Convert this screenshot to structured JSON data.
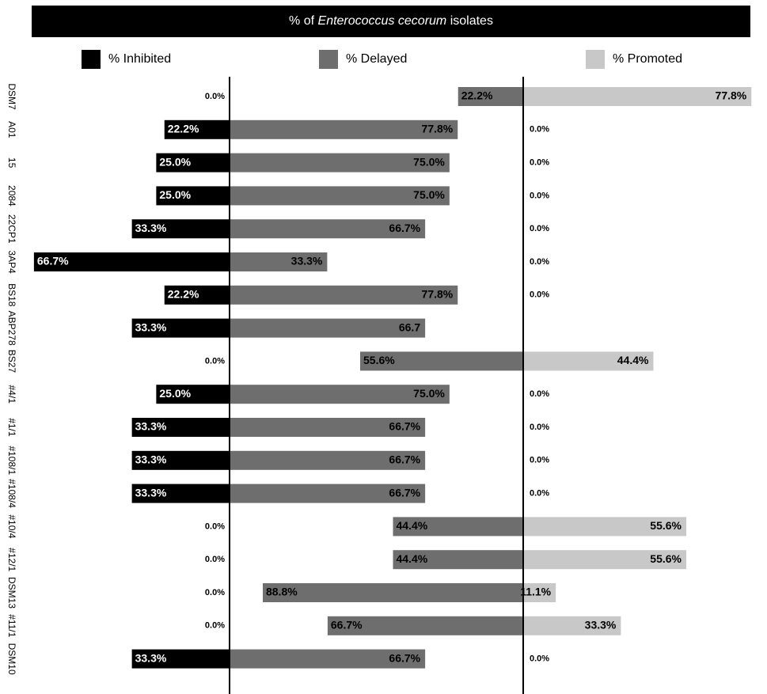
{
  "title": {
    "prefix": "% of ",
    "species": "Enterococcus cecorum",
    "suffix": " isolates"
  },
  "legend": [
    {
      "label": "% Inhibited",
      "color": "#000000"
    },
    {
      "label": "% Delayed",
      "color": "#6e6e6e"
    },
    {
      "label": "% Promoted",
      "color": "#c8c8c8"
    }
  ],
  "chart_data": {
    "type": "bar",
    "stacked": true,
    "orientation": "horizontal",
    "title": "% of Enterococcus cecorum isolates",
    "categories": [
      "DSM7",
      "A01",
      "15",
      "2084",
      "22CP1",
      "3AP4",
      "BS18",
      "ABP278",
      "BS27",
      "#4/1",
      "#1/1",
      "#108/1",
      "#108/4",
      "#10/4",
      "#12/1",
      "DSM13",
      "#11/1",
      "DSM10"
    ],
    "series": [
      {
        "name": "% Inhibited",
        "color": "#000000",
        "values": [
          0,
          22.2,
          25,
          25,
          33.3,
          66.7,
          22.2,
          33.3,
          0,
          25,
          33.3,
          33.3,
          33.3,
          0,
          0,
          0,
          0,
          33.3
        ],
        "labels": [
          "0.0%",
          "22.2%",
          "25.0%",
          "25.0%",
          "33.3%",
          "66.7%",
          "22.2%",
          "33.3%",
          "0.0%",
          "25.0%",
          "33.3%",
          "33.3%",
          "33.3%",
          "0.0%",
          "0.0%",
          "0.0%",
          "0.0%",
          "33.3%"
        ]
      },
      {
        "name": "% Delayed",
        "color": "#6e6e6e",
        "values": [
          22.2,
          77.8,
          75,
          75,
          66.7,
          33.3,
          77.8,
          66.7,
          55.6,
          75,
          66.7,
          66.7,
          66.7,
          44.4,
          44.4,
          88.8,
          66.7,
          66.7
        ],
        "labels": [
          "22.2%",
          "77.8%",
          "75.0%",
          "75.0%",
          "66.7%",
          "33.3%",
          "77.8%",
          "66.7",
          "55.6%",
          "75.0%",
          "66.7%",
          "66.7%",
          "66.7%",
          "44.4%",
          "44.4%",
          "88.8%",
          "66.7%",
          "66.7%"
        ]
      },
      {
        "name": "% Promoted",
        "color": "#c8c8c8",
        "values": [
          77.8,
          0,
          0,
          0,
          0,
          0,
          0,
          0,
          44.4,
          0,
          0,
          0,
          0,
          55.6,
          55.6,
          11.1,
          33.3,
          0
        ],
        "labels": [
          "77.8%",
          "0.0%",
          "0.0%",
          "0.0%",
          "0.0%",
          "0.0%",
          "0.0%",
          "",
          "44.4%",
          "0.0%",
          "0.0%",
          "0.0%",
          "0.0%",
          "55.6%",
          "55.6%",
          "11.1%",
          "33.3%",
          "0.0%"
        ]
      }
    ],
    "grid": false,
    "legend_position": "top"
  }
}
